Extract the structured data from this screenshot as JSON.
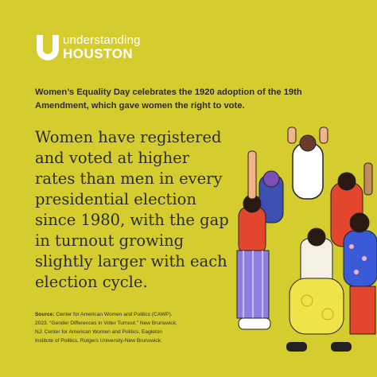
{
  "logo": {
    "line1": "understanding",
    "line2": "HOUSTON"
  },
  "intro": {
    "lines": [
      "Women’s Equality Day celebrates the 1920 adoption of the 19th",
      "Amendment, which gave women the right to vote."
    ]
  },
  "headline": {
    "lines": [
      "Women have registered",
      "and voted at higher",
      "rates than men in every",
      "presidential election",
      "since 1980, with the gap",
      "in turnout growing",
      "slightly larger with each",
      "election cycle."
    ]
  },
  "source": {
    "label": "Source:",
    "lines": [
      " Center for American Women and Politics (CAWP).",
      "2023. “Gender Differences in Voter Turnout.” New Brunswick,",
      "NJ: Center for American Women and Politics, Eagleton",
      "Institute of Politics, Rutgers University-New Brunswick."
    ]
  }
}
